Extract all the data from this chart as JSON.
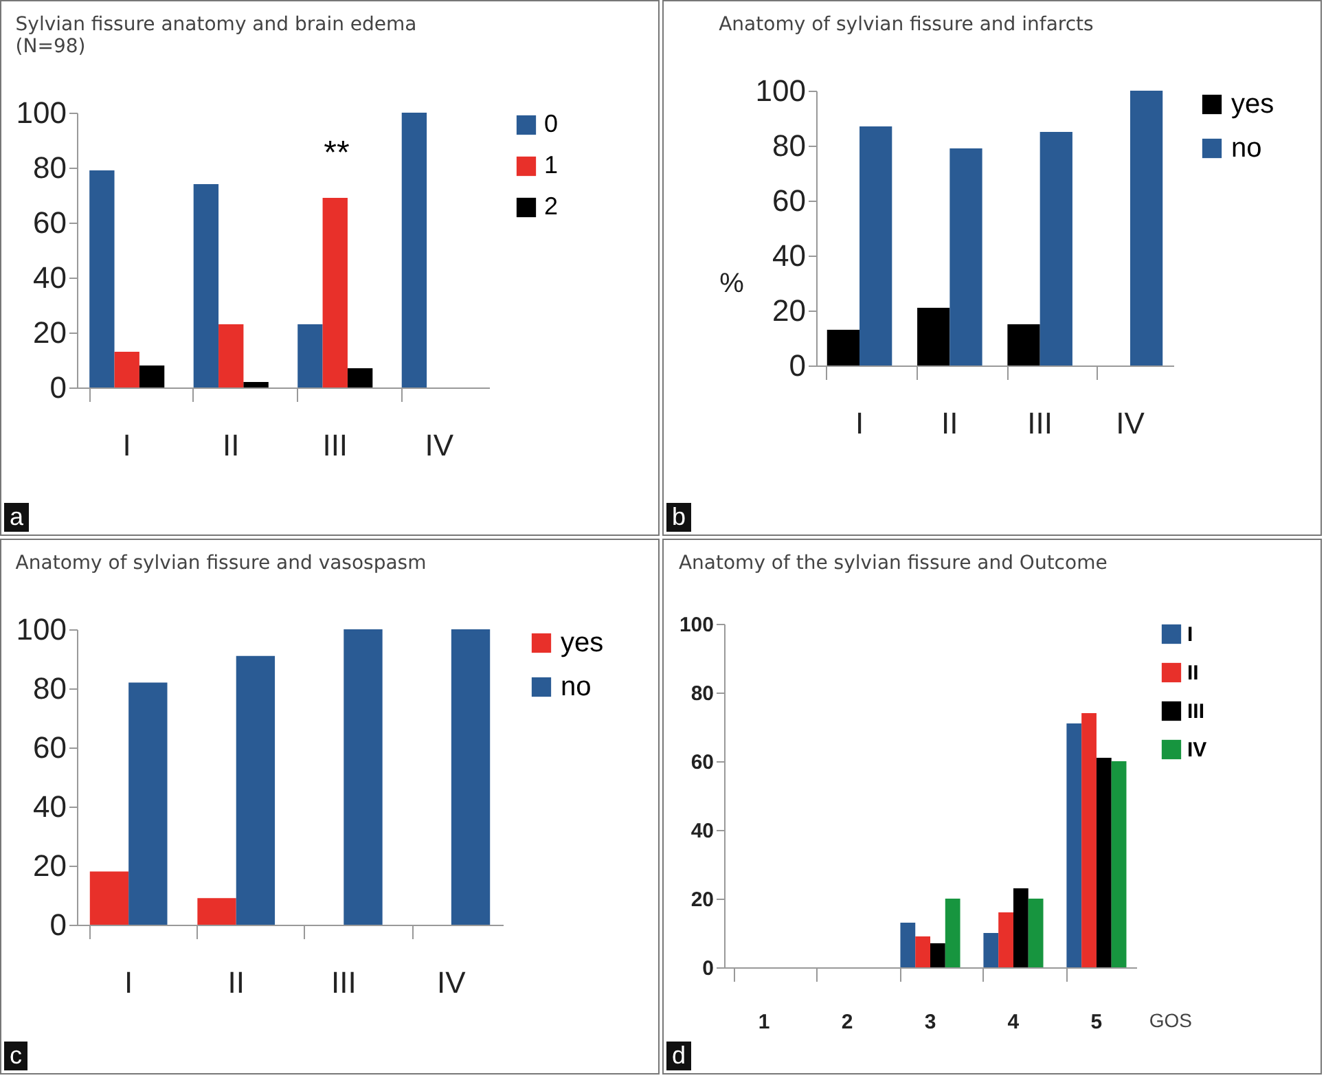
{
  "chart_data": [
    {
      "type": "bar",
      "title": "Sylvian fissure anatomy and brain edema (N=98)",
      "categories": [
        "I",
        "II",
        "III",
        "IV"
      ],
      "series": [
        {
          "name": "0",
          "color": "#2a5b94",
          "values": [
            79,
            74,
            23,
            100
          ]
        },
        {
          "name": "1",
          "color": "#e8302a",
          "values": [
            13,
            23,
            69,
            0
          ]
        },
        {
          "name": "2",
          "color": "#000000",
          "values": [
            8,
            2,
            7,
            0
          ]
        }
      ],
      "ylim": [
        0,
        100
      ],
      "yticks": [
        0,
        20,
        40,
        60,
        80,
        100
      ],
      "grid": false,
      "legend": "right",
      "annotations": [
        "a",
        "**"
      ]
    },
    {
      "type": "bar",
      "title": "Anatomy of sylvian fissure and infarcts",
      "ylabel": "%",
      "categories": [
        "I",
        "II",
        "III",
        "IV"
      ],
      "series": [
        {
          "name": "yes",
          "color": "#000000",
          "values": [
            13,
            21,
            15,
            0
          ]
        },
        {
          "name": "no",
          "color": "#2a5b94",
          "values": [
            87,
            79,
            85,
            100
          ]
        }
      ],
      "ylim": [
        0,
        100
      ],
      "yticks": [
        0,
        20,
        40,
        60,
        80,
        100
      ],
      "grid": false,
      "legend": "right",
      "annotations": [
        "b"
      ]
    },
    {
      "type": "bar",
      "title": "Anatomy of sylvian fissure and vasospasm",
      "categories": [
        "I",
        "II",
        "III",
        "IV"
      ],
      "series": [
        {
          "name": "yes",
          "color": "#e8302a",
          "values": [
            18,
            9,
            0,
            0
          ]
        },
        {
          "name": "no",
          "color": "#2a5b94",
          "values": [
            82,
            91,
            100,
            100
          ]
        }
      ],
      "ylim": [
        0,
        100
      ],
      "yticks": [
        0,
        20,
        40,
        60,
        80,
        100
      ],
      "grid": false,
      "legend": "right",
      "annotations": [
        "c"
      ]
    },
    {
      "type": "bar",
      "title": "Anatomy of the sylvian fissure and Outcome",
      "xlabel": "GOS",
      "categories": [
        "1",
        "2",
        "3",
        "4",
        "5"
      ],
      "series": [
        {
          "name": "I",
          "color": "#2a5b94",
          "values": [
            0,
            0,
            13,
            10,
            71
          ]
        },
        {
          "name": "II",
          "color": "#e8302a",
          "values": [
            0,
            0,
            9,
            16,
            74
          ]
        },
        {
          "name": "III",
          "color": "#000000",
          "values": [
            0,
            0,
            7,
            23,
            61
          ]
        },
        {
          "name": "IV",
          "color": "#17953f",
          "values": [
            0,
            0,
            20,
            20,
            60
          ]
        }
      ],
      "ylim": [
        0,
        100
      ],
      "yticks": [
        0,
        20,
        40,
        60,
        80,
        100
      ],
      "grid": false,
      "legend": "top right",
      "annotations": [
        "d"
      ]
    }
  ]
}
